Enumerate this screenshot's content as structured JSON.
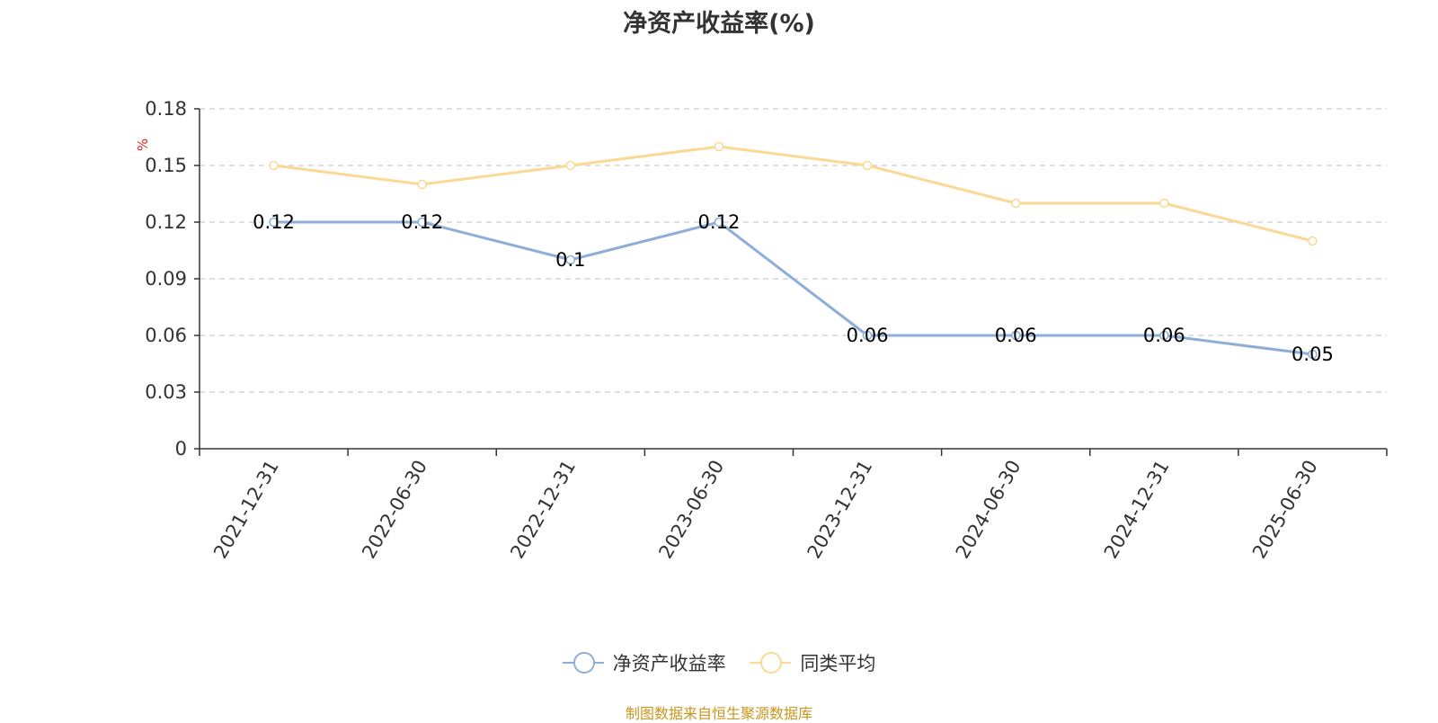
{
  "chart_data": {
    "type": "line",
    "title": "净资产收益率(%)",
    "y_unit": "%",
    "categories": [
      "2021-12-31",
      "2022-06-30",
      "2022-12-31",
      "2023-06-30",
      "2023-12-31",
      "2024-06-30",
      "2024-12-31",
      "2025-06-30"
    ],
    "ylim": [
      0,
      0.18
    ],
    "yticks": [
      "0",
      "0.03",
      "0.06",
      "0.09",
      "0.12",
      "0.15",
      "0.18"
    ],
    "grid": true,
    "legend_position": "bottom",
    "series": [
      {
        "name": "净资产收益率",
        "color": "#8eaed8",
        "values": [
          0.12,
          0.12,
          0.1,
          0.12,
          0.06,
          0.06,
          0.06,
          0.05
        ],
        "labels": [
          "0.12",
          "0.12",
          "0.1",
          "0.12",
          "0.06",
          "0.06",
          "0.06",
          "0.05"
        ]
      },
      {
        "name": "同类平均",
        "color": "#fbd995",
        "values": [
          0.15,
          0.14,
          0.15,
          0.16,
          0.15,
          0.13,
          0.13,
          0.11
        ]
      }
    ]
  },
  "footer": {
    "source": "制图数据来自恒生聚源数据库"
  }
}
